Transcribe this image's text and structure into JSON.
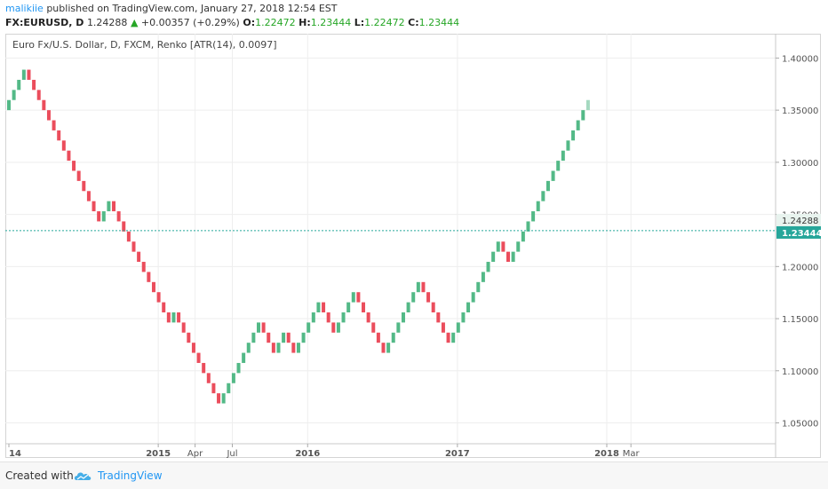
{
  "header": {
    "user": "malikiie",
    "published": " published on TradingView.com, January 27, 2018 12:54 EST",
    "symbol": "FX:EURUSD, D",
    "last": "1.24288",
    "change": "+0.00357 (+0.29%)",
    "o_label": "O:",
    "o_value": "1.22472",
    "h_label": "H:",
    "h_value": "1.23444",
    "l_label": "L:",
    "l_value": "1.22472",
    "c_label": "C:",
    "c_value": "1.23444"
  },
  "footer": {
    "created_with": "Created with",
    "brand": "TradingView",
    "logo_icon": "tradingview-cloud-icon"
  },
  "colors": {
    "up": "#53b987",
    "down": "#eb4d5c",
    "last_up": "#a5d9c0",
    "grid": "#eeeeee",
    "axis_text": "#555555",
    "price_line": "#26a69a"
  },
  "chart_data": {
    "type": "renko",
    "title": "Euro Fx/U.S. Dollar, D, FXCM, Renko [ATR(14), 0.0097]",
    "box_size": 0.0097,
    "ylim": [
      1.03,
      1.408
    ],
    "y_ticks": [
      "1.40000",
      "1.35000",
      "1.30000",
      "1.25000",
      "1.20000",
      "1.15000",
      "1.10000",
      "1.05000"
    ],
    "x_ticks": [
      {
        "label": "14",
        "date": "2014-01-01",
        "bold": true
      },
      {
        "label": "2015",
        "date": "2015-01-01",
        "bold": true
      },
      {
        "label": "Apr",
        "date": "2015-04-01",
        "bold": false
      },
      {
        "label": "Jul",
        "date": "2015-07-01",
        "bold": false
      },
      {
        "label": "2016",
        "date": "2016-01-01",
        "bold": true
      },
      {
        "label": "2017",
        "date": "2017-01-01",
        "bold": true
      },
      {
        "label": "2018",
        "date": "2018-01-01",
        "bold": true
      },
      {
        "label": "Mar",
        "date": "2018-03-01",
        "bold": false
      }
    ],
    "start_price": 1.35,
    "moves": [
      1,
      1,
      1,
      1,
      -1,
      -1,
      -1,
      -1,
      -1,
      -1,
      -1,
      -1,
      -1,
      -1,
      -1,
      -1,
      -1,
      -1,
      -1,
      1,
      1,
      -1,
      -1,
      -1,
      -1,
      -1,
      -1,
      -1,
      -1,
      -1,
      -1,
      -1,
      -1,
      1,
      -1,
      -1,
      -1,
      -1,
      -1,
      -1,
      -1,
      -1,
      -1,
      1,
      1,
      1,
      1,
      1,
      1,
      1,
      1,
      -1,
      -1,
      -1,
      1,
      1,
      -1,
      -1,
      1,
      1,
      1,
      1,
      1,
      -1,
      -1,
      -1,
      1,
      1,
      1,
      1,
      -1,
      -1,
      -1,
      -1,
      -1,
      -1,
      1,
      1,
      1,
      1,
      1,
      1,
      1,
      -1,
      -1,
      -1,
      -1,
      -1,
      -1,
      1,
      1,
      1,
      1,
      1,
      1,
      1,
      1,
      1,
      1,
      -1,
      -1,
      1,
      1,
      1,
      1,
      1,
      1,
      1,
      1,
      1,
      1,
      1,
      1,
      1,
      1,
      1,
      1
    ],
    "last_price": 1.24288,
    "last_price_label": "1.24288",
    "close_price": 1.23444,
    "close_price_label": "1.23444"
  }
}
